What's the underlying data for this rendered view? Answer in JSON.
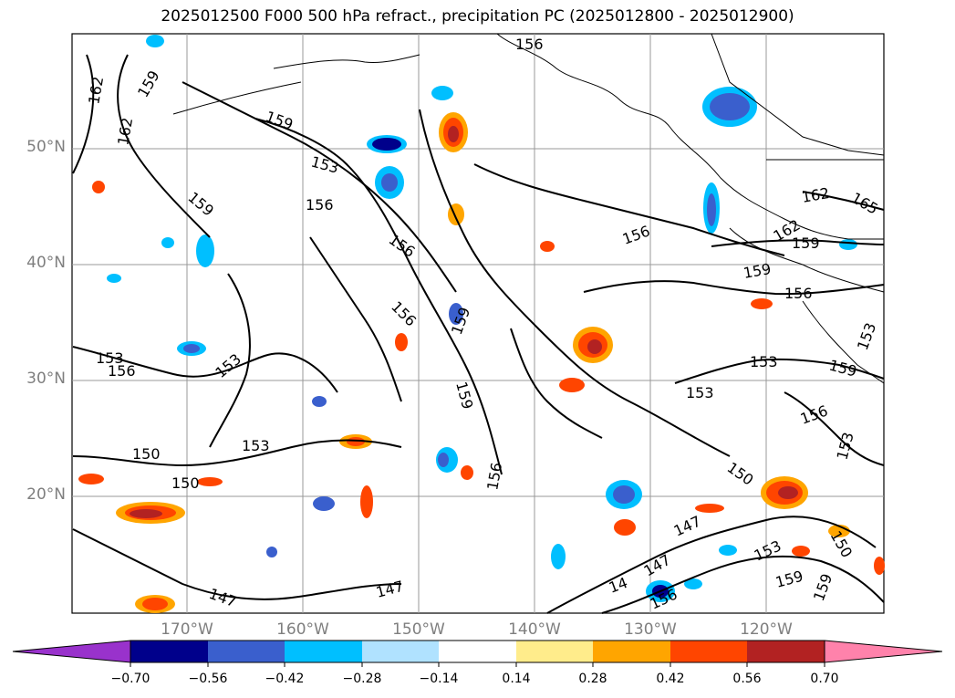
{
  "title": "2025012500 F000 500 hPa refract., precipitation PC (2025012800 - 2025012900)",
  "lat_labels": [
    "50°N",
    "40°N",
    "30°N",
    "20°N"
  ],
  "lon_labels": [
    "170°W",
    "160°W",
    "150°W",
    "140°W",
    "130°W",
    "120°W"
  ],
  "contour_labels": [
    "162",
    "159",
    "162",
    "159",
    "156",
    "153",
    "156",
    "159",
    "156",
    "156",
    "156",
    "159",
    "153",
    "156",
    "153",
    "150",
    "150",
    "153",
    "156",
    "159",
    "147",
    "147",
    "147",
    "147",
    "14",
    "156",
    "150",
    "153",
    "159",
    "150",
    "159",
    "153",
    "153",
    "159",
    "156",
    "162",
    "159",
    "162",
    "165",
    "153",
    "156",
    "153",
    "159"
  ],
  "colorbar": {
    "ticks": [
      "−0.70",
      "−0.56",
      "−0.42",
      "−0.28",
      "−0.14",
      "0.14",
      "0.28",
      "0.42",
      "0.56",
      "0.70"
    ],
    "colors": [
      "#9932cc",
      "#00008b",
      "#3a5fcd",
      "#00bfff",
      "#b0e2ff",
      "#ffffff",
      "#ffec8b",
      "#ffa500",
      "#ff4500",
      "#b22222",
      "#ff82ab"
    ]
  }
}
